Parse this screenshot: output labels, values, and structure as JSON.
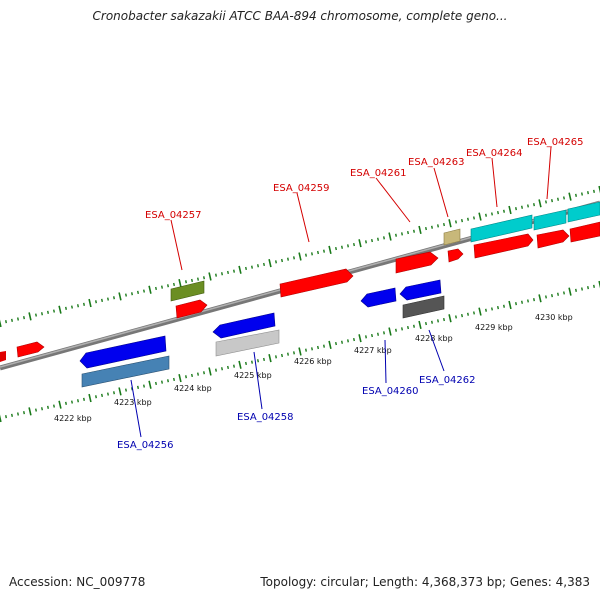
{
  "title": "Cronobacter sakazakii ATCC BAA-894 chromosome, complete geno...",
  "footer": {
    "accession": "Accession: NC_009778",
    "topology": "Topology: circular; Length: 4,368,373 bp; Genes: 4,383"
  },
  "colors": {
    "forward_label": "#d40000",
    "reverse_label": "#0000b0",
    "tick": "#1a7a1a",
    "backbone": "#888888",
    "red": "#ff0000",
    "blue": "#0000ee",
    "cyan": "#00cccc",
    "olive": "#6b8e23",
    "tan": "#c8b87a",
    "steel": "#4682b4",
    "silver": "#c8c8c8",
    "dark_grey": "#555555"
  },
  "axis": {
    "labels": [
      "4222 kbp",
      "4223 kbp",
      "4224 kbp",
      "4225 kbp",
      "4226 kbp",
      "4227 kbp",
      "4228 kbp",
      "4229 kbp",
      "4230 kbp"
    ]
  },
  "forward_genes": [
    {
      "name": "ESA_04257"
    },
    {
      "name": "ESA_04259"
    },
    {
      "name": "ESA_04261"
    },
    {
      "name": "ESA_04263"
    },
    {
      "name": "ESA_04264"
    },
    {
      "name": "ESA_04265"
    }
  ],
  "reverse_genes": [
    {
      "name": "ESA_04256"
    },
    {
      "name": "ESA_04258"
    },
    {
      "name": "ESA_04260"
    },
    {
      "name": "ESA_04262"
    }
  ]
}
